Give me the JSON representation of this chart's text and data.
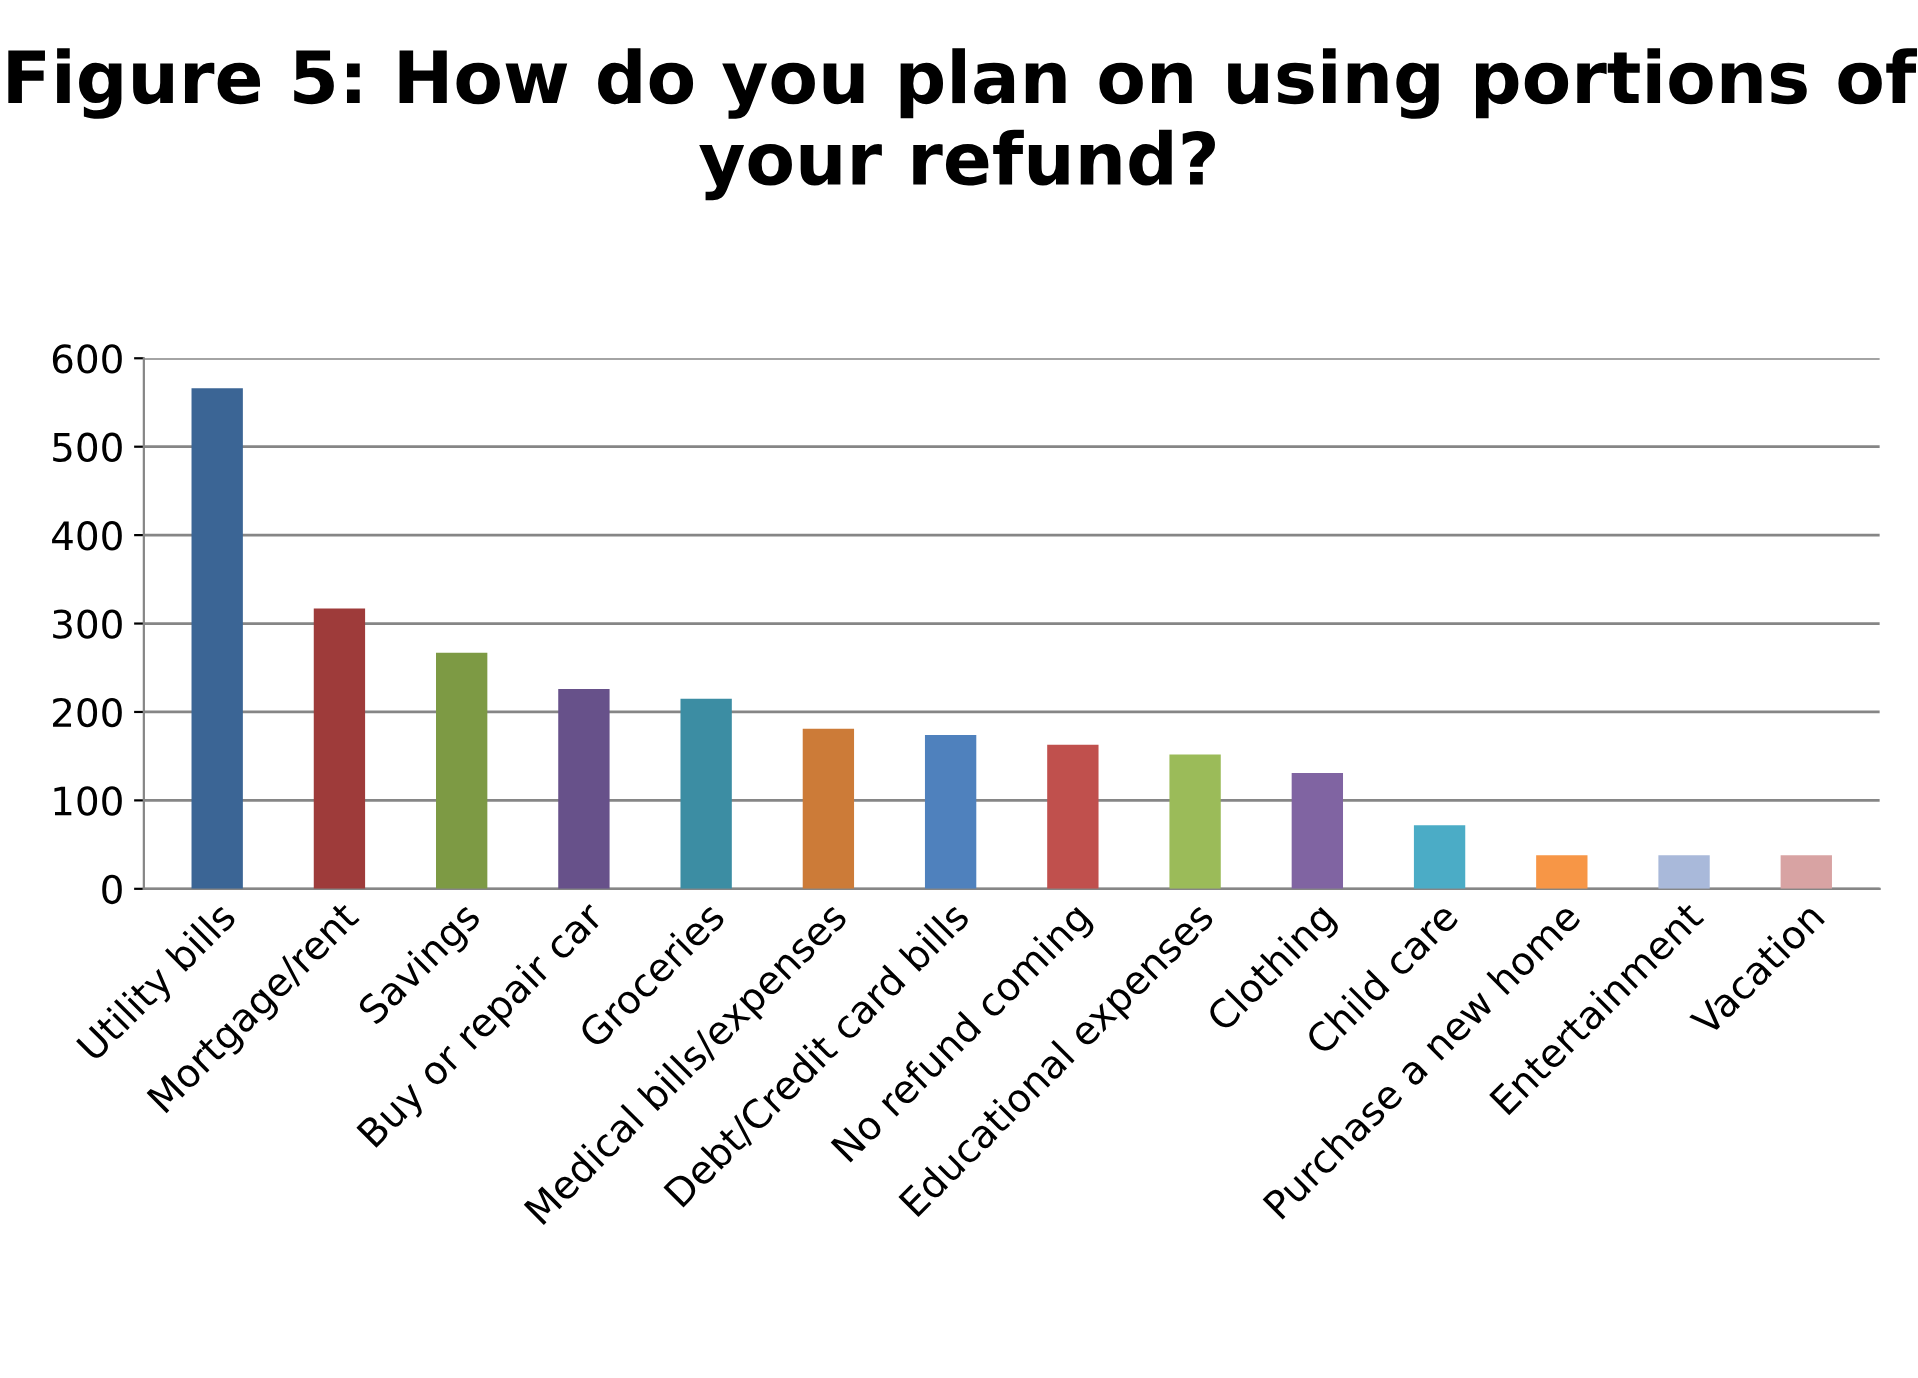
{
  "chart_data": {
    "type": "bar",
    "title": "Figure 5: How do you plan on using portions of your refund?",
    "categories": [
      "Utility bills",
      "Mortgage/rent",
      "Savings",
      "Buy or repair car",
      "Groceries",
      "Medical bills/expenses",
      "Debt/Credit card bills",
      "No refund coming",
      "Educational expenses",
      "Clothing",
      "Child care",
      "Purchase a new home",
      "Entertainment",
      "Vacation"
    ],
    "values": [
      566,
      317,
      267,
      226,
      215,
      181,
      174,
      163,
      152,
      131,
      72,
      38,
      38,
      38
    ],
    "colors": [
      "#3b6595",
      "#9e3b3a",
      "#7d9a44",
      "#67518a",
      "#3c8da3",
      "#cc7b38",
      "#4f81bd",
      "#c0504d",
      "#9bbb59",
      "#8064a2",
      "#4bacc6",
      "#f79646",
      "#a9b9da",
      "#d8a3a3"
    ],
    "ylim": [
      0,
      600
    ],
    "yticks": [
      0,
      100,
      200,
      300,
      400,
      500,
      600
    ],
    "grid": "y",
    "legend": false
  }
}
